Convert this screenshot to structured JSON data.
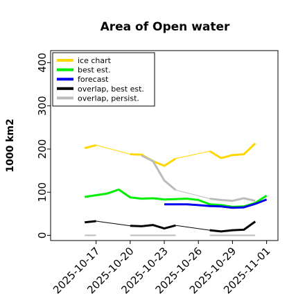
{
  "chart_data": {
    "type": "line",
    "title": "Area of Open water",
    "xlabel": "",
    "ylabel": "1000 km2",
    "ylim": [
      -12,
      428
    ],
    "xlim": [
      "2025-10-13",
      "2025-11-02"
    ],
    "yticks": [
      0,
      100,
      200,
      300,
      400
    ],
    "xticks": [
      {
        "date": "2025-10-17",
        "label": "2025-10-17",
        "color": "#000000"
      },
      {
        "date": "2025-10-20",
        "label": "2025-10-20",
        "color": "#000000"
      },
      {
        "date": "2025-10-23",
        "label": "2025-10-23",
        "color": "#228B22"
      },
      {
        "date": "2025-10-26",
        "label": "2025-10-26",
        "color": "#000000"
      },
      {
        "date": "2025-10-29",
        "label": "2025-10-29",
        "color": "#000000"
      },
      {
        "date": "2025-11-01",
        "label": "2025-11-01",
        "color": "#000000"
      }
    ],
    "grid": false,
    "legend_position": "top-left",
    "legend": [
      {
        "name": "ice chart",
        "color": "#FFD700"
      },
      {
        "name": "best est.",
        "color": "#00EE00"
      },
      {
        "name": "forecast",
        "color": "#0000EE"
      },
      {
        "name": "overlap, best est.",
        "color": "#000000"
      },
      {
        "name": "overlap, persist.",
        "color": "#BBBBBB"
      }
    ],
    "series": [
      {
        "name": "ice chart",
        "color": "#FFD700",
        "segments": [
          {
            "x": [
              "2025-10-16",
              "2025-10-17"
            ],
            "y": [
              202,
              209
            ],
            "width": 3
          },
          {
            "x": [
              "2025-10-17",
              "2025-10-20"
            ],
            "y": [
              209,
              188
            ],
            "width": 1
          },
          {
            "x": [
              "2025-10-20",
              "2025-10-21",
              "2025-10-22",
              "2025-10-23",
              "2025-10-24"
            ],
            "y": [
              188,
              187,
              172,
              161,
              178
            ],
            "width": 3
          },
          {
            "x": [
              "2025-10-24",
              "2025-10-27"
            ],
            "y": [
              178,
              195
            ],
            "width": 1
          },
          {
            "x": [
              "2025-10-27",
              "2025-10-28",
              "2025-10-29",
              "2025-10-30",
              "2025-10-31"
            ],
            "y": [
              195,
              179,
              186,
              188,
              213
            ],
            "width": 3
          }
        ]
      },
      {
        "name": "overlap, persist.",
        "color": "#BBBBBB",
        "segments": [
          {
            "x": [
              "2025-10-16",
              "2025-10-17"
            ],
            "y": [
              0,
              0
            ],
            "width": 2
          },
          {
            "x": [
              "2025-10-20",
              "2025-10-24"
            ],
            "y": [
              0,
              0
            ],
            "width": 2
          },
          {
            "x": [
              "2025-10-27",
              "2025-10-31"
            ],
            "y": [
              0,
              0
            ],
            "width": 2
          },
          {
            "x": [
              "2025-10-21",
              "2025-10-22",
              "2025-10-23",
              "2025-10-24"
            ],
            "y": [
              185,
              172,
              127,
              105
            ],
            "width": 3
          },
          {
            "x": [
              "2025-10-24",
              "2025-10-27"
            ],
            "y": [
              105,
              85
            ],
            "width": 1
          },
          {
            "x": [
              "2025-10-27",
              "2025-10-28",
              "2025-10-29",
              "2025-10-30",
              "2025-10-31"
            ],
            "y": [
              85,
              82,
              80,
              86,
              80
            ],
            "width": 3
          }
        ]
      },
      {
        "name": "best est.",
        "color": "#00EE00",
        "segments": [
          {
            "x": [
              "2025-10-16",
              "2025-10-17",
              "2025-10-18",
              "2025-10-19",
              "2025-10-20",
              "2025-10-21",
              "2025-10-22",
              "2025-10-23",
              "2025-10-24",
              "2025-10-25",
              "2025-10-26",
              "2025-10-27",
              "2025-10-28",
              "2025-10-29",
              "2025-10-30",
              "2025-10-31",
              "2025-11-01"
            ],
            "y": [
              89,
              93,
              97,
              106,
              88,
              85,
              86,
              83,
              84,
              85,
              82,
              72,
              70,
              66,
              67,
              75,
              92
            ],
            "width": 3
          }
        ]
      },
      {
        "name": "forecast",
        "color": "#0000EE",
        "segments": [
          {
            "x": [
              "2025-10-23",
              "2025-10-24",
              "2025-10-25",
              "2025-10-26",
              "2025-10-27",
              "2025-10-28",
              "2025-10-29",
              "2025-10-30",
              "2025-10-31",
              "2025-11-01"
            ],
            "y": [
              72,
              72,
              72,
              70,
              68,
              67,
              64,
              65,
              73,
              83
            ],
            "width": 3
          }
        ]
      },
      {
        "name": "overlap, best est.",
        "color": "#000000",
        "segments": [
          {
            "x": [
              "2025-10-16",
              "2025-10-17"
            ],
            "y": [
              30,
              33
            ],
            "width": 3
          },
          {
            "x": [
              "2025-10-17",
              "2025-10-20"
            ],
            "y": [
              33,
              22
            ],
            "width": 1
          },
          {
            "x": [
              "2025-10-20",
              "2025-10-21",
              "2025-10-22",
              "2025-10-23",
              "2025-10-24"
            ],
            "y": [
              22,
              21,
              24,
              16,
              23
            ],
            "width": 3
          },
          {
            "x": [
              "2025-10-24",
              "2025-10-27"
            ],
            "y": [
              23,
              12
            ],
            "width": 1
          },
          {
            "x": [
              "2025-10-27",
              "2025-10-28",
              "2025-10-29",
              "2025-10-30",
              "2025-10-31"
            ],
            "y": [
              12,
              9,
              12,
              13,
              32
            ],
            "width": 3
          }
        ]
      }
    ]
  }
}
